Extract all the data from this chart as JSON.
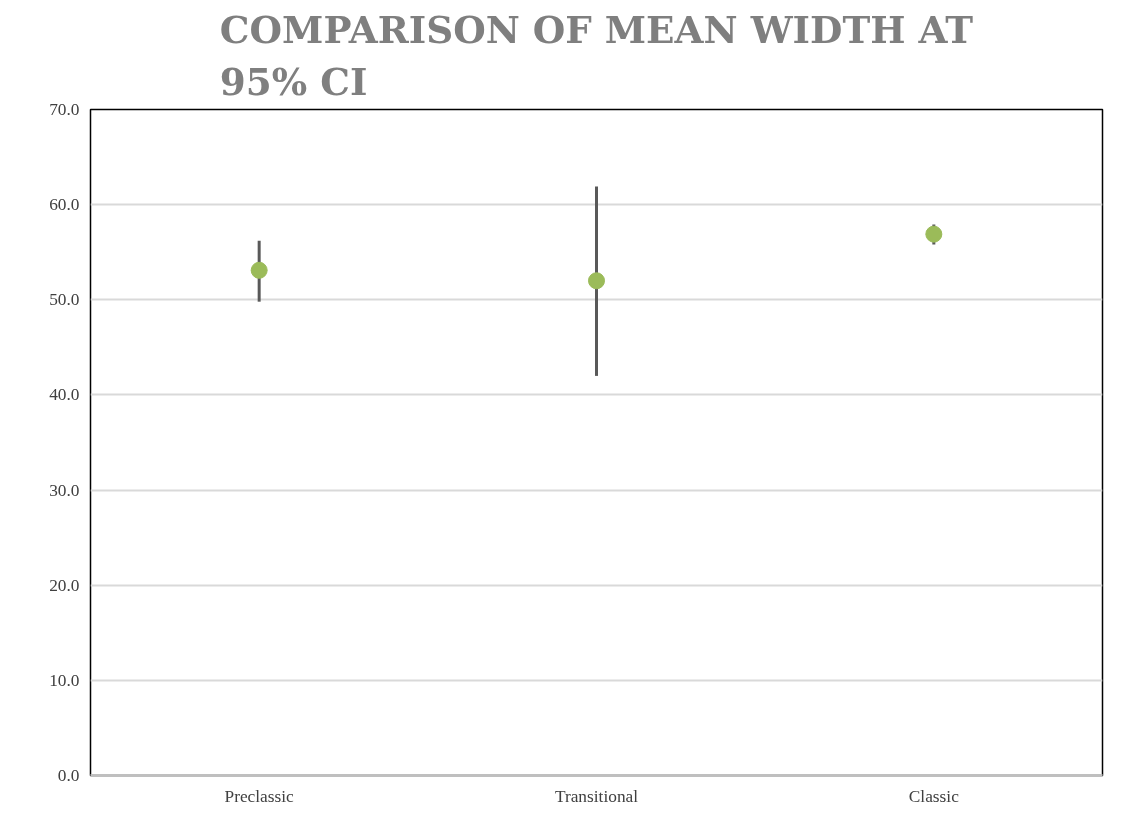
{
  "chart_data": {
    "type": "scatter",
    "title": "COMPARISON OF MEAN WIDTH AT\n95% CI",
    "categories": [
      "Preclassic",
      "Transitional",
      "Classic"
    ],
    "values": [
      53.1,
      52.0,
      56.9
    ],
    "errors": [
      [
        49.8,
        56.2
      ],
      [
        42.0,
        61.9
      ],
      [
        55.8,
        57.9
      ]
    ],
    "color": "#9bbb59",
    "marker": "circle",
    "ylim": [
      0,
      70
    ],
    "yticks": [
      {
        "value": 0,
        "label": "0.0"
      },
      {
        "value": 10,
        "label": "10.0"
      },
      {
        "value": 20,
        "label": "20.0"
      },
      {
        "value": 30,
        "label": "30.0"
      },
      {
        "value": 40,
        "label": "40.0"
      },
      {
        "value": 50,
        "label": "50.0"
      },
      {
        "value": 60,
        "label": "60.0"
      },
      {
        "value": 70,
        "label": "70.0"
      }
    ],
    "grid": "y"
  }
}
